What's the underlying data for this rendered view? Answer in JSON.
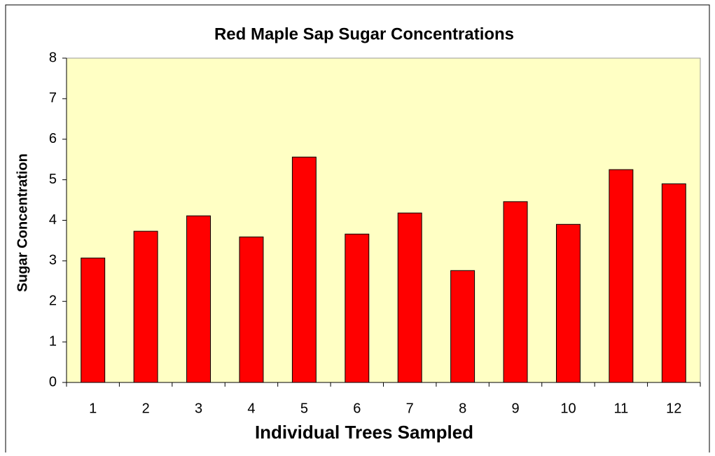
{
  "chart_data": {
    "type": "bar",
    "title": "Red Maple Sap Sugar Concentrations",
    "x_label": "Individual Trees Sampled",
    "y_label": "Sugar Concentration",
    "categories": [
      "1",
      "2",
      "3",
      "4",
      "5",
      "6",
      "7",
      "8",
      "9",
      "10",
      "11",
      "12"
    ],
    "values": [
      3.07,
      3.73,
      4.11,
      3.59,
      5.56,
      3.66,
      4.18,
      2.76,
      4.46,
      3.9,
      5.25,
      4.9
    ],
    "color": "#ff0000",
    "ylim": [
      0,
      8
    ],
    "yticks": [
      0,
      1,
      2,
      3,
      4,
      5,
      6,
      7,
      8
    ],
    "grid": false
  }
}
